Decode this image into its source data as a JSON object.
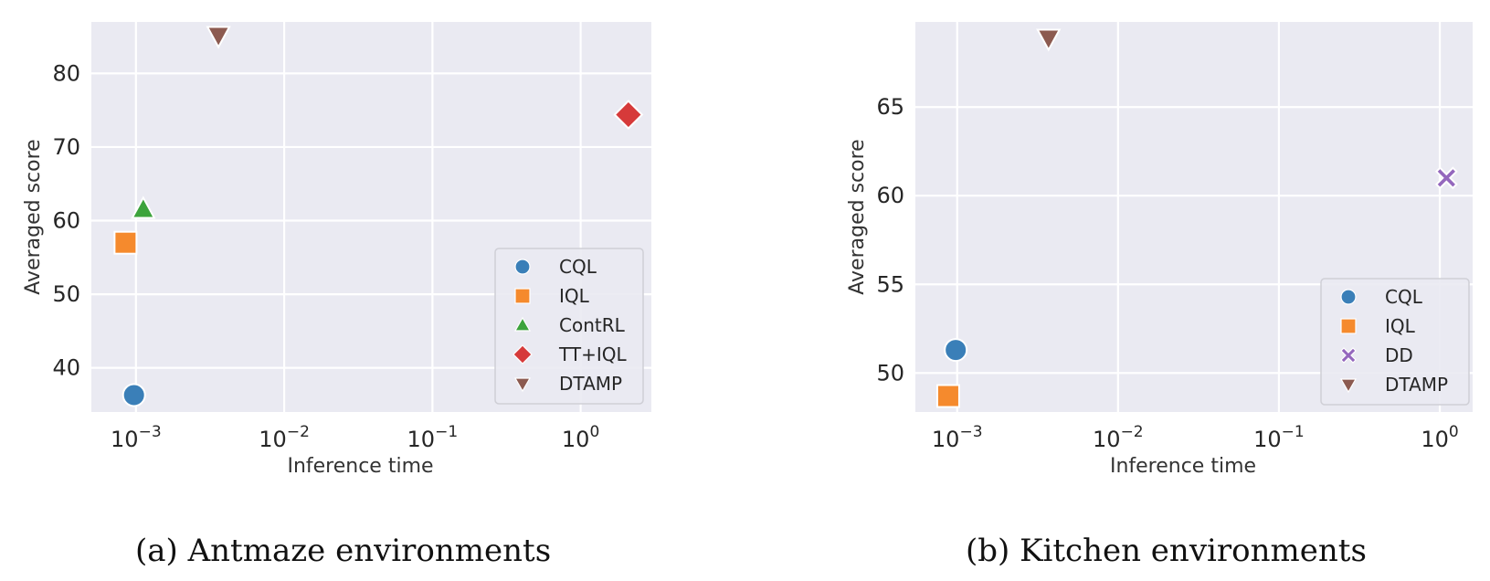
{
  "chart_data": [
    {
      "type": "scatter",
      "caption": "(a)  Antmaze environments",
      "xlabel": "Inference time",
      "ylabel": "Averaged score",
      "xscale": "log",
      "xlim": [
        0.0005,
        3.0
      ],
      "ylim": [
        34,
        87
      ],
      "xticks": [
        {
          "value": 0.001,
          "label": "10^-3"
        },
        {
          "value": 0.01,
          "label": "10^-2"
        },
        {
          "value": 0.1,
          "label": "10^-1"
        },
        {
          "value": 1,
          "label": "10^0"
        }
      ],
      "yticks": [
        40,
        50,
        60,
        70,
        80
      ],
      "grid": true,
      "legend_position": "lower-right",
      "series": [
        {
          "name": "CQL",
          "marker": "circle",
          "color": "#3a7fb8",
          "x": 0.00097,
          "y": 36.3
        },
        {
          "name": "IQL",
          "marker": "square",
          "color": "#f58a2d",
          "x": 0.00085,
          "y": 57.0
        },
        {
          "name": "ContRL",
          "marker": "triangle-up",
          "color": "#3ca33c",
          "x": 0.00112,
          "y": 61.5
        },
        {
          "name": "TT+IQL",
          "marker": "diamond",
          "color": "#d63a3a",
          "x": 2.1,
          "y": 74.4
        },
        {
          "name": "DTAMP",
          "marker": "triangle-down",
          "color": "#8c5a50",
          "x": 0.0036,
          "y": 85.2
        }
      ]
    },
    {
      "type": "scatter",
      "caption": "(b)  Kitchen environments",
      "xlabel": "Inference time",
      "ylabel": "Averaged score",
      "xscale": "log",
      "xlim": [
        0.00055,
        1.6
      ],
      "ylim": [
        47.8,
        69.8
      ],
      "xticks": [
        {
          "value": 0.001,
          "label": "10^-3"
        },
        {
          "value": 0.01,
          "label": "10^-2"
        },
        {
          "value": 0.1,
          "label": "10^-1"
        },
        {
          "value": 1,
          "label": "10^0"
        }
      ],
      "yticks": [
        50,
        55,
        60,
        65
      ],
      "grid": true,
      "legend_position": "lower-right",
      "series": [
        {
          "name": "CQL",
          "marker": "circle",
          "color": "#3a7fb8",
          "x": 0.00098,
          "y": 51.3
        },
        {
          "name": "IQL",
          "marker": "square",
          "color": "#f58a2d",
          "x": 0.00088,
          "y": 48.7
        },
        {
          "name": "DD",
          "marker": "x",
          "color": "#9467bd",
          "x": 1.1,
          "y": 61.0
        },
        {
          "name": "DTAMP",
          "marker": "triangle-down",
          "color": "#8c5a50",
          "x": 0.0037,
          "y": 68.9
        }
      ]
    }
  ]
}
